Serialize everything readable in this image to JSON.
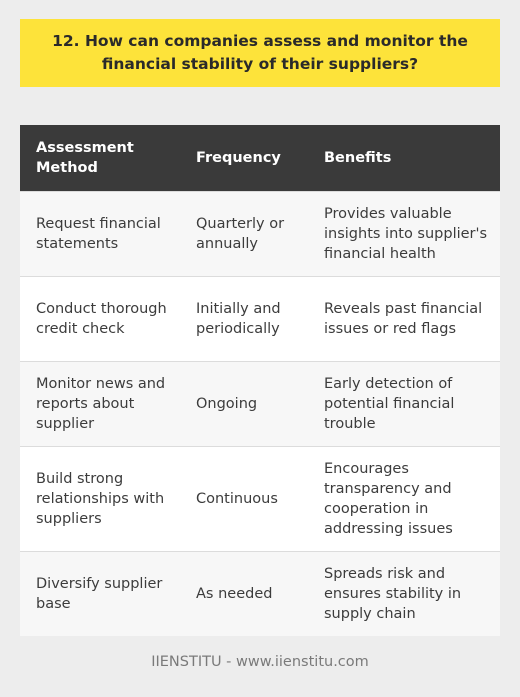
{
  "title": "12. How can companies assess and monitor the financial stability of their suppliers?",
  "table": {
    "headers": [
      "Assessment Method",
      "Frequency",
      "Benefits"
    ],
    "rows": [
      [
        "Request financial statements",
        "Quarterly or annually",
        "Provides valuable insights into supplier's financial health"
      ],
      [
        "Conduct thorough credit check",
        "Initially and periodically",
        "Reveals past financial issues or red flags"
      ],
      [
        "Monitor news and reports about supplier",
        "Ongoing",
        "Early detection of potential financial trouble"
      ],
      [
        "Build strong relationships with suppliers",
        "Continuous",
        "Encourages transparency and cooperation in addressing issues"
      ],
      [
        "Diversify supplier base",
        "As needed",
        "Spreads risk and ensures stability in supply chain"
      ]
    ]
  },
  "footer": "IIENSTITU - www.iienstitu.com",
  "colors": {
    "title_background": "#fde33a",
    "header_background": "#3a3a3a",
    "page_background": "#ededed"
  }
}
